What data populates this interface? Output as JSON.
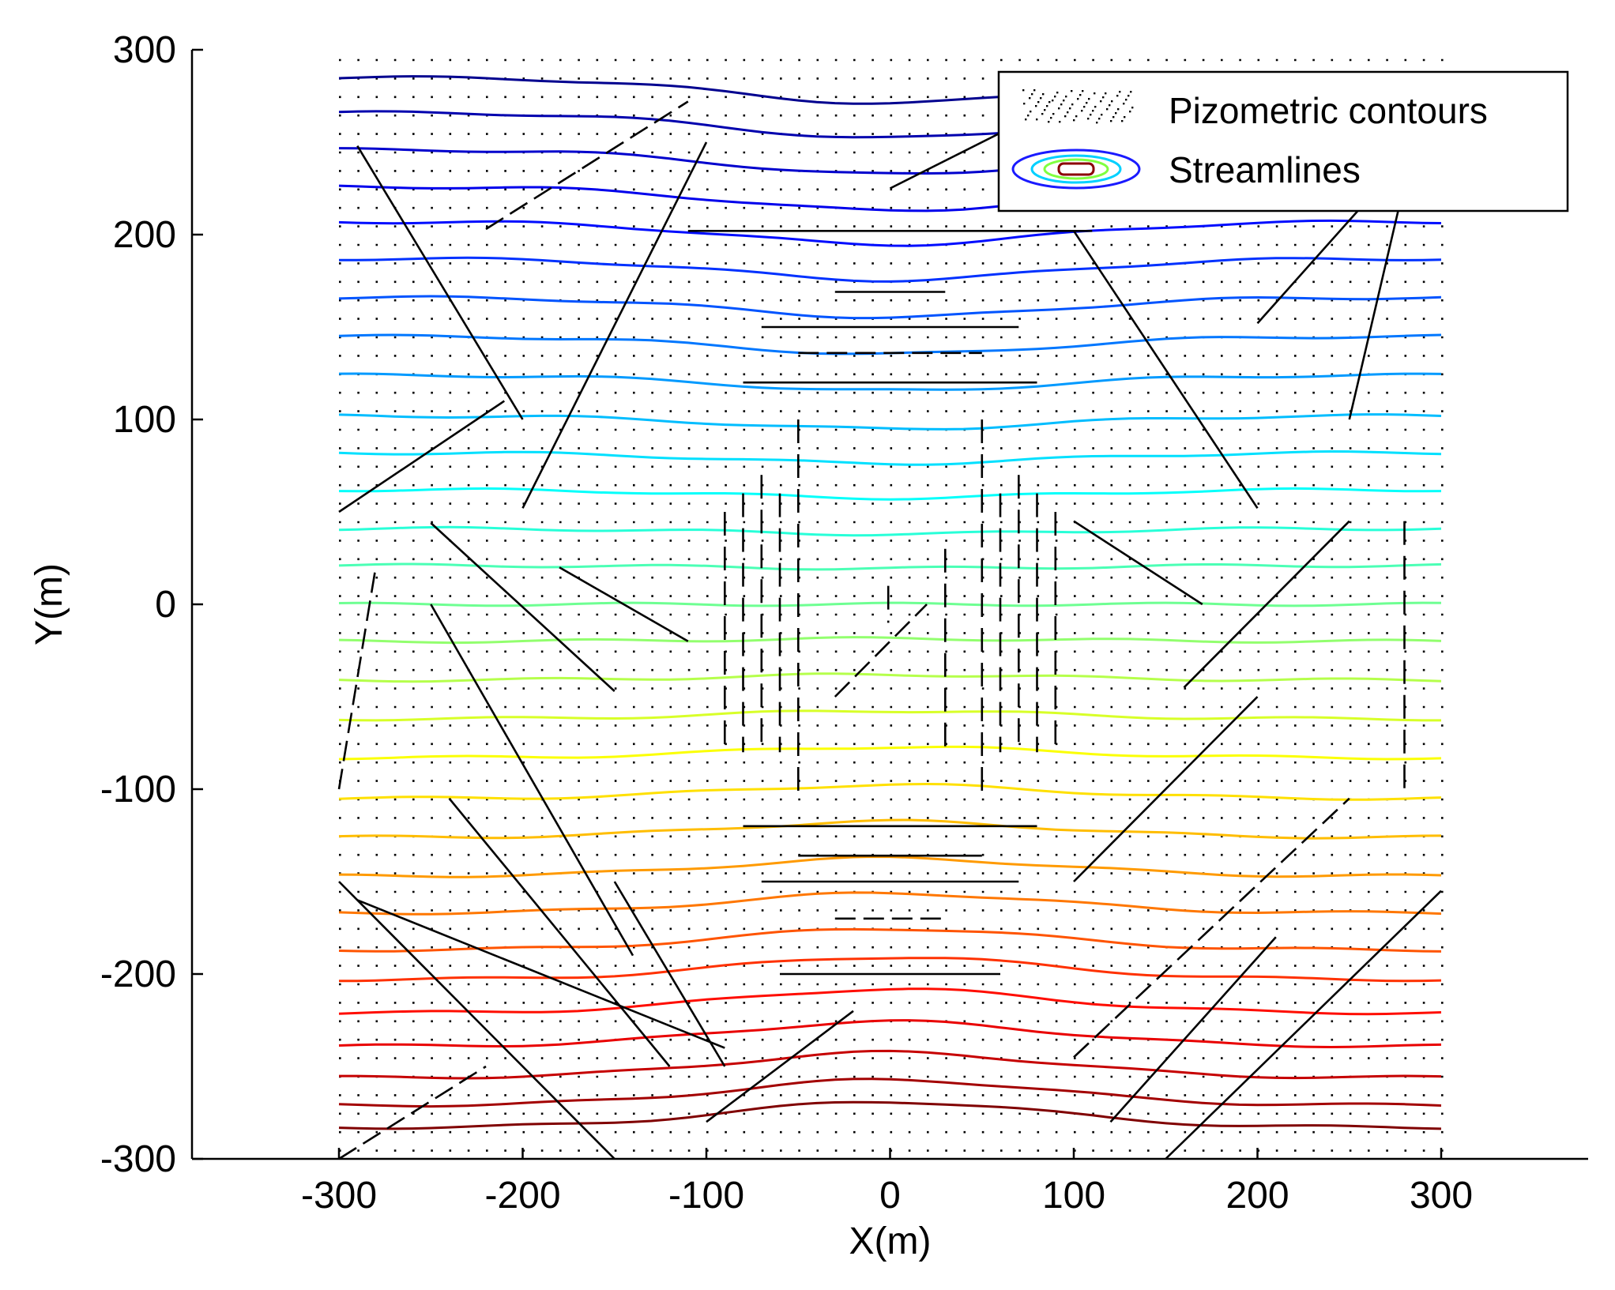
{
  "chart_data": {
    "type": "contour",
    "title": "",
    "xlabel": "X(m)",
    "ylabel": "Y(m)",
    "xlim": [
      -380,
      380
    ],
    "ylim": [
      -300,
      300
    ],
    "xticks": [
      -300,
      -200,
      -100,
      0,
      100,
      200,
      300
    ],
    "yticks": [
      -300,
      -200,
      -100,
      0,
      100,
      200,
      300
    ],
    "xtick_labels": [
      "-300",
      "-200",
      "-100",
      "0",
      "100",
      "200",
      "300"
    ],
    "ytick_labels": [
      "-300",
      "-200",
      "-100",
      "0",
      "100",
      "200",
      "300"
    ],
    "grid": false,
    "legend": {
      "location": "top-right",
      "entries": [
        {
          "label": "Pizometric contours",
          "style": "dots"
        },
        {
          "label": "Streamlines",
          "style": "contour-ellipses"
        }
      ]
    },
    "piezometric_contours": {
      "x_range": [
        -300,
        300
      ],
      "count": 30,
      "y_levels_at_edges": [
        285,
        266,
        246,
        226,
        207,
        187,
        166,
        145,
        124,
        102,
        82,
        62,
        41,
        21,
        0,
        -20,
        -41,
        -62,
        -83,
        -105,
        -126,
        -147,
        -167,
        -187,
        -203,
        -221,
        -239,
        -256,
        -271,
        -283
      ],
      "colormap": [
        "#00008f",
        "#0000ff",
        "#0080ff",
        "#00ffff",
        "#80ff80",
        "#ffff00",
        "#ff8000",
        "#ff0000",
        "#800000"
      ]
    },
    "dot_grid": {
      "x_start": -300,
      "x_end": 300,
      "x_step": 10,
      "y_start": -295,
      "y_end": 300,
      "y_step": 10
    },
    "streamline_segments": [
      [
        [
          -290,
          248
        ],
        [
          -200,
          100
        ]
      ],
      [
        [
          -200,
          52
        ],
        [
          -100,
          250
        ]
      ],
      [
        [
          -300,
          50
        ],
        [
          -210,
          110
        ]
      ],
      [
        [
          -220,
          203
        ],
        [
          -110,
          272
        ]
      ],
      [
        [
          -110,
          202
        ],
        [
          110,
          202
        ]
      ],
      [
        [
          0,
          225
        ],
        [
          70,
          260
        ]
      ],
      [
        [
          -30,
          169
        ],
        [
          30,
          169
        ]
      ],
      [
        [
          -70,
          150
        ],
        [
          70,
          150
        ]
      ],
      [
        [
          -50,
          136
        ],
        [
          50,
          136
        ]
      ],
      [
        [
          -80,
          120
        ],
        [
          80,
          120
        ]
      ],
      [
        [
          100,
          202
        ],
        [
          200,
          52
        ]
      ],
      [
        [
          200,
          152
        ],
        [
          270,
          230
        ]
      ],
      [
        [
          250,
          100
        ],
        [
          290,
          270
        ]
      ],
      [
        [
          -300,
          -100
        ],
        [
          -280,
          20
        ]
      ],
      [
        [
          -250,
          44
        ],
        [
          -150,
          -47
        ]
      ],
      [
        [
          -180,
          20
        ],
        [
          -110,
          -20
        ]
      ],
      [
        [
          -250,
          0
        ],
        [
          -140,
          -190
        ]
      ],
      [
        [
          -100,
          -280
        ],
        [
          -20,
          -220
        ]
      ],
      [
        [
          -300,
          -300
        ],
        [
          -220,
          -250
        ]
      ],
      [
        [
          -300,
          -150
        ],
        [
          -150,
          -300
        ]
      ],
      [
        [
          -290,
          -160
        ],
        [
          -90,
          -240
        ]
      ],
      [
        [
          -240,
          -105
        ],
        [
          -120,
          -250
        ]
      ],
      [
        [
          -150,
          -150
        ],
        [
          -90,
          -250
        ]
      ],
      [
        [
          -30,
          -50
        ],
        [
          20,
          0
        ]
      ],
      [
        [
          100,
          45
        ],
        [
          170,
          0
        ]
      ],
      [
        [
          160,
          -45
        ],
        [
          250,
          45
        ]
      ],
      [
        [
          100,
          -150
        ],
        [
          200,
          -50
        ]
      ],
      [
        [
          120,
          -280
        ],
        [
          210,
          -180
        ]
      ],
      [
        [
          100,
          -245
        ],
        [
          250,
          -105
        ]
      ],
      [
        [
          150,
          -300
        ],
        [
          300,
          -155
        ]
      ],
      [
        [
          -80,
          -120
        ],
        [
          80,
          -120
        ]
      ],
      [
        [
          -50,
          -136
        ],
        [
          50,
          -136
        ]
      ],
      [
        [
          -70,
          -150
        ],
        [
          70,
          -150
        ]
      ],
      [
        [
          -30,
          -170
        ],
        [
          30,
          -170
        ]
      ],
      [
        [
          -60,
          -200
        ],
        [
          60,
          -200
        ]
      ]
    ],
    "vertical_segments_x": [
      -90,
      -80,
      -70,
      -60,
      -50,
      50,
      60,
      70,
      80,
      90,
      30,
      -1,
      280
    ]
  }
}
